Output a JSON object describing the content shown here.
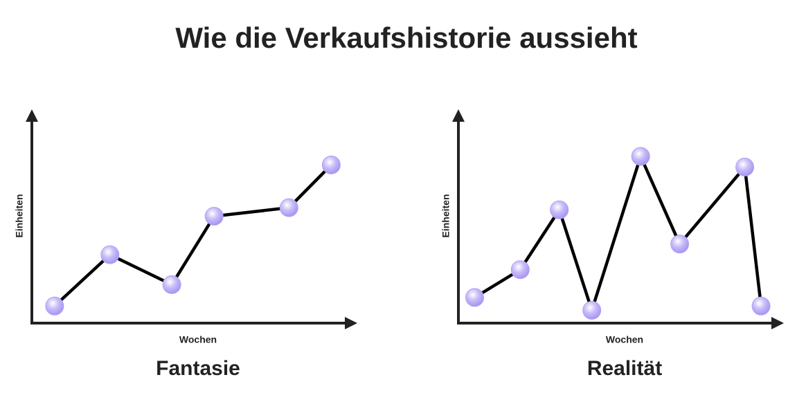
{
  "title": "Wie die Verkaufshistorie aussieht",
  "chart_data": [
    {
      "type": "line",
      "caption": "Fantasie",
      "xlabel": "Wochen",
      "ylabel": "Einheiten",
      "x": [
        7,
        24,
        43,
        56,
        79,
        92
      ],
      "xlim": [
        0,
        100
      ],
      "ylim": [
        0,
        100
      ],
      "series": [
        {
          "color": "#000000",
          "marker_color": "#b3a2f4",
          "values": [
            8,
            32,
            18,
            50,
            54,
            74
          ]
        }
      ]
    },
    {
      "type": "line",
      "caption": "Realität",
      "xlabel": "Wochen",
      "ylabel": "Einheiten",
      "x": [
        5,
        19,
        31,
        41,
        56,
        68,
        88,
        93
      ],
      "xlim": [
        0,
        100
      ],
      "ylim": [
        0,
        100
      ],
      "series": [
        {
          "color": "#000000",
          "marker_color": "#b3a2f4",
          "values": [
            12,
            25,
            53,
            6,
            78,
            37,
            73,
            8
          ]
        }
      ]
    }
  ]
}
